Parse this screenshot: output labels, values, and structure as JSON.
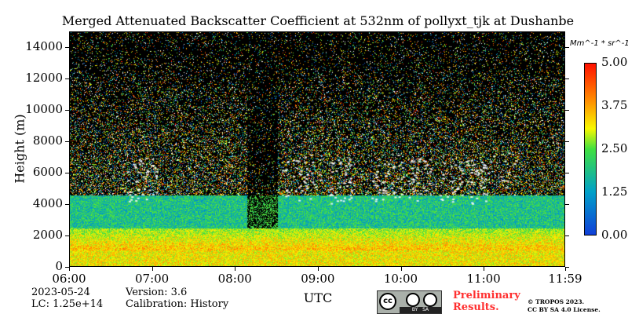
{
  "title": "Merged Attenuated Backscatter Coefficient at 532nm of pollyxt_tjk at Dushanbe",
  "chart_data": {
    "type": "heatmap",
    "title": "Merged Attenuated Backscatter Coefficient at 532nm of pollyxt_tjk at Dushanbe",
    "xlabel": "UTC",
    "ylabel": "Height (m)",
    "x_ticks": [
      "06:00",
      "07:00",
      "08:00",
      "09:00",
      "10:00",
      "11:00",
      "11:59"
    ],
    "xlim": [
      "06:00",
      "11:59"
    ],
    "y_ticks": [
      "0",
      "2000",
      "4000",
      "6000",
      "8000",
      "10000",
      "12000",
      "14000"
    ],
    "ylim": [
      0,
      15000
    ],
    "colorbar": {
      "label": "Mm^-1 * sr^-1",
      "ticks": [
        "0.00",
        "1.25",
        "2.50",
        "3.75",
        "5.00"
      ],
      "range": [
        0,
        5
      ],
      "colormap": "jet-like",
      "colors": [
        "#1040d8",
        "#00a0c8",
        "#40e040",
        "#f8f800",
        "#ff9000",
        "#ff1000"
      ]
    }
  },
  "info": {
    "date": "2023-05-24",
    "lc": "LC: 1.25e+14",
    "version": "Version: 3.6",
    "calibration": "Calibration: History"
  },
  "logo": {
    "text": "cc BY SA"
  },
  "prelim": [
    "Preliminary",
    "Results."
  ],
  "copyright": [
    "© TROPOS 2023.",
    "CC BY SA 4.0 License."
  ]
}
